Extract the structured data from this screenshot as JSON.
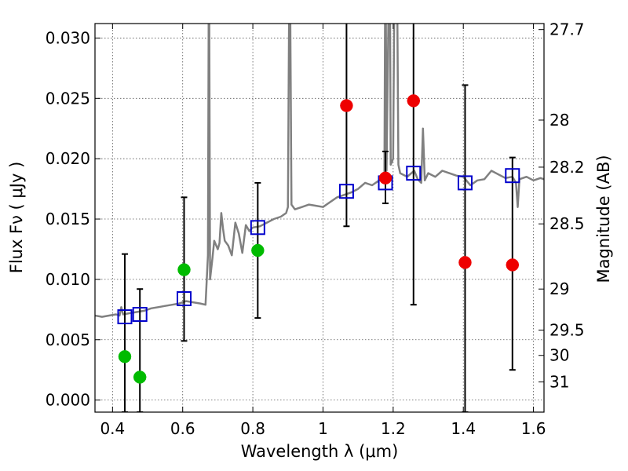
{
  "chart_data": {
    "type": "scatter",
    "xlabel": "Wavelength  λ (μm)",
    "ylabel": "Flux  Fν  ( μJy )",
    "y2label": "Magnitude (AB)",
    "xlim": [
      0.35,
      1.63
    ],
    "ylim": [
      -0.001,
      0.0312
    ],
    "grid": true,
    "x_ticks": [
      0.4,
      0.6,
      0.8,
      1.0,
      1.2,
      1.4,
      1.6
    ],
    "x_tick_labels": [
      "0.4",
      "0.6",
      "0.8",
      "1",
      "1.2",
      "1.4",
      "1.6"
    ],
    "y_ticks": [
      0.0,
      0.005,
      0.01,
      0.015,
      0.02,
      0.025,
      0.03
    ],
    "y_tick_labels": [
      "0.000",
      "0.005",
      "0.010",
      "0.015",
      "0.020",
      "0.025",
      "0.030"
    ],
    "mag_ticks": [
      {
        "label": "27.7",
        "flux": 0.0307
      },
      {
        "label": "28",
        "flux": 0.0232
      },
      {
        "label": "28.2",
        "flux": 0.0193
      },
      {
        "label": "28.5",
        "flux": 0.0146
      },
      {
        "label": "29",
        "flux": 0.0092
      },
      {
        "label": "29.5",
        "flux": 0.0058
      },
      {
        "label": "30",
        "flux": 0.0037
      },
      {
        "label": "31",
        "flux": 0.0015
      }
    ],
    "colors": {
      "model": "#808080",
      "box": "#0000cc",
      "green": "#00bb00",
      "red": "#ee0000",
      "errorbar": "#000000",
      "grid": "#555555"
    },
    "model_spectrum": [
      [
        0.35,
        0.007
      ],
      [
        0.37,
        0.0069
      ],
      [
        0.39,
        0.007
      ],
      [
        0.41,
        0.0071
      ],
      [
        0.42,
        0.007
      ],
      [
        0.425,
        0.0077
      ],
      [
        0.43,
        0.0071
      ],
      [
        0.45,
        0.0072
      ],
      [
        0.47,
        0.0073
      ],
      [
        0.49,
        0.0074
      ],
      [
        0.51,
        0.0076
      ],
      [
        0.53,
        0.0077
      ],
      [
        0.55,
        0.0078
      ],
      [
        0.57,
        0.0079
      ],
      [
        0.59,
        0.008
      ],
      [
        0.61,
        0.0082
      ],
      [
        0.63,
        0.0081
      ],
      [
        0.65,
        0.008
      ],
      [
        0.665,
        0.0079
      ],
      [
        0.672,
        0.012
      ],
      [
        0.675,
        0.04
      ],
      [
        0.678,
        0.01
      ],
      [
        0.685,
        0.0118
      ],
      [
        0.69,
        0.0132
      ],
      [
        0.7,
        0.0125
      ],
      [
        0.705,
        0.013
      ],
      [
        0.71,
        0.0155
      ],
      [
        0.715,
        0.0142
      ],
      [
        0.72,
        0.0132
      ],
      [
        0.73,
        0.0128
      ],
      [
        0.74,
        0.012
      ],
      [
        0.75,
        0.0147
      ],
      [
        0.76,
        0.0138
      ],
      [
        0.77,
        0.0122
      ],
      [
        0.78,
        0.0145
      ],
      [
        0.79,
        0.014
      ],
      [
        0.8,
        0.0143
      ],
      [
        0.82,
        0.0144
      ],
      [
        0.84,
        0.0147
      ],
      [
        0.86,
        0.015
      ],
      [
        0.88,
        0.0152
      ],
      [
        0.895,
        0.0155
      ],
      [
        0.9,
        0.016
      ],
      [
        0.905,
        0.04
      ],
      [
        0.91,
        0.0162
      ],
      [
        0.92,
        0.0158
      ],
      [
        0.94,
        0.016
      ],
      [
        0.96,
        0.0162
      ],
      [
        0.98,
        0.0161
      ],
      [
        1.0,
        0.016
      ],
      [
        1.02,
        0.0164
      ],
      [
        1.04,
        0.0168
      ],
      [
        1.06,
        0.017
      ],
      [
        1.08,
        0.0172
      ],
      [
        1.1,
        0.0175
      ],
      [
        1.12,
        0.018
      ],
      [
        1.14,
        0.0178
      ],
      [
        1.16,
        0.0182
      ],
      [
        1.175,
        0.0185
      ],
      [
        1.178,
        0.04
      ],
      [
        1.181,
        0.019
      ],
      [
        1.19,
        0.04
      ],
      [
        1.193,
        0.0195
      ],
      [
        1.2,
        0.02
      ],
      [
        1.205,
        0.04
      ],
      [
        1.21,
        0.04
      ],
      [
        1.215,
        0.0195
      ],
      [
        1.22,
        0.0188
      ],
      [
        1.24,
        0.0185
      ],
      [
        1.26,
        0.019
      ],
      [
        1.27,
        0.0183
      ],
      [
        1.28,
        0.018
      ],
      [
        1.285,
        0.0225
      ],
      [
        1.29,
        0.0182
      ],
      [
        1.3,
        0.0188
      ],
      [
        1.32,
        0.0185
      ],
      [
        1.34,
        0.019
      ],
      [
        1.36,
        0.0188
      ],
      [
        1.38,
        0.0186
      ],
      [
        1.4,
        0.0185
      ],
      [
        1.42,
        0.0178
      ],
      [
        1.44,
        0.0182
      ],
      [
        1.46,
        0.0183
      ],
      [
        1.48,
        0.019
      ],
      [
        1.5,
        0.0187
      ],
      [
        1.52,
        0.0184
      ],
      [
        1.54,
        0.0185
      ],
      [
        1.55,
        0.018
      ],
      [
        1.555,
        0.016
      ],
      [
        1.56,
        0.0183
      ],
      [
        1.58,
        0.0185
      ],
      [
        1.6,
        0.0182
      ],
      [
        1.62,
        0.0184
      ],
      [
        1.63,
        0.0183
      ]
    ],
    "model_boxes": [
      {
        "x": 0.435,
        "y": 0.0069
      },
      {
        "x": 0.478,
        "y": 0.0071
      },
      {
        "x": 0.604,
        "y": 0.0084
      },
      {
        "x": 0.814,
        "y": 0.0143
      },
      {
        "x": 1.067,
        "y": 0.0173
      },
      {
        "x": 1.178,
        "y": 0.018
      },
      {
        "x": 1.258,
        "y": 0.0188
      },
      {
        "x": 1.405,
        "y": 0.018
      },
      {
        "x": 1.54,
        "y": 0.0186
      }
    ],
    "observations": [
      {
        "x": 0.435,
        "y": 0.0036,
        "yerr_low": -0.001,
        "yerr_high": 0.0121,
        "color": "green"
      },
      {
        "x": 0.478,
        "y": 0.0019,
        "yerr_low": -0.001,
        "yerr_high": 0.0092,
        "color": "green"
      },
      {
        "x": 0.604,
        "y": 0.0108,
        "yerr_low": 0.0049,
        "yerr_high": 0.0168,
        "color": "green"
      },
      {
        "x": 0.814,
        "y": 0.0124,
        "yerr_low": 0.0068,
        "yerr_high": 0.018,
        "color": "green"
      },
      {
        "x": 1.067,
        "y": 0.0244,
        "yerr_low": 0.0144,
        "yerr_high": 0.032,
        "color": "red"
      },
      {
        "x": 1.178,
        "y": 0.0184,
        "yerr_low": 0.0163,
        "yerr_high": 0.0206,
        "color": "red"
      },
      {
        "x": 1.258,
        "y": 0.0248,
        "yerr_low": 0.0079,
        "yerr_high": 0.032,
        "color": "red"
      },
      {
        "x": 1.405,
        "y": 0.0114,
        "yerr_low": -0.001,
        "yerr_high": 0.0261,
        "color": "red"
      },
      {
        "x": 1.54,
        "y": 0.0112,
        "yerr_low": 0.0025,
        "yerr_high": 0.0201,
        "color": "red"
      }
    ]
  }
}
